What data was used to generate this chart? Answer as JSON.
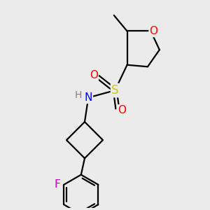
{
  "bg_color": "#ebebeb",
  "bond_color": "#000000",
  "bond_width": 1.6,
  "atom_colors": {
    "O": "#ff0000",
    "N": "#0000ff",
    "S": "#cccc00",
    "F": "#cc00cc",
    "H": "#808080",
    "C": "#000000"
  },
  "font_size": 10,
  "figsize": [
    3.0,
    3.0
  ],
  "dpi": 100,
  "xlim": [
    0,
    10
  ],
  "ylim": [
    0,
    10
  ]
}
